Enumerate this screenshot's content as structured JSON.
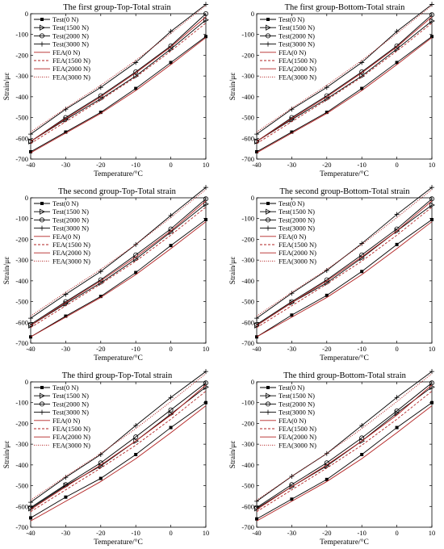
{
  "figure": {
    "legend_entries": [
      {
        "label": "Test(0 N)",
        "style": "test",
        "marker": "filled-square"
      },
      {
        "label": "Test(1500 N)",
        "style": "test",
        "marker": "triangle-right"
      },
      {
        "label": "Test(2000 N)",
        "style": "test",
        "marker": "circle"
      },
      {
        "label": "Test(3000 N)",
        "style": "test",
        "marker": "plus"
      },
      {
        "label": "FEA(0 N)",
        "style": "fea-solid"
      },
      {
        "label": "FEA(1500 N)",
        "style": "fea-dashed"
      },
      {
        "label": "FEA(2000 N)",
        "style": "fea-solid"
      },
      {
        "label": "FEA(3000 N)",
        "style": "fea-dotted"
      }
    ],
    "colors": {
      "test": "#000000",
      "fea": "#b22222"
    }
  },
  "chart_data": [
    {
      "type": "line",
      "title": "The first group-Top-Total strain",
      "xlabel": "Temperature/°C",
      "ylabel": "Strain/με",
      "xlim": [
        -40,
        10
      ],
      "ylim": [
        -700,
        0
      ],
      "xticks": [
        -40,
        -30,
        -20,
        -10,
        0,
        10
      ],
      "yticks": [
        -700,
        -600,
        -500,
        -400,
        -300,
        -200,
        -100,
        0
      ],
      "legend_position": "top-left",
      "x": [
        -40,
        -30,
        -20,
        -10,
        0,
        10
      ],
      "series": [
        {
          "name": "Test(0 N)",
          "values": [
            -665,
            -570,
            -475,
            -360,
            -235,
            -110
          ]
        },
        {
          "name": "Test(1500 N)",
          "values": [
            -615,
            -510,
            -410,
            -300,
            -170,
            -30
          ]
        },
        {
          "name": "Test(2000 N)",
          "values": [
            -615,
            -500,
            -395,
            -280,
            -155,
            0
          ]
        },
        {
          "name": "Test(3000 N)",
          "values": [
            -580,
            -460,
            -355,
            -235,
            -85,
            45
          ]
        },
        {
          "name": "FEA(0 N)",
          "values": [
            -670,
            -575,
            -480,
            -370,
            -245,
            -115
          ]
        },
        {
          "name": "FEA(1500 N)",
          "values": [
            -625,
            -520,
            -415,
            -305,
            -180,
            -45
          ]
        },
        {
          "name": "FEA(2000 N)",
          "values": [
            -615,
            -505,
            -400,
            -285,
            -160,
            -15
          ]
        },
        {
          "name": "FEA(3000 N)",
          "values": [
            -570,
            -455,
            -345,
            -225,
            -95,
            40
          ]
        }
      ]
    },
    {
      "type": "line",
      "title": "The first group-Bottom-Total strain",
      "xlabel": "Temperature/°C",
      "ylabel": "Strain/με",
      "xlim": [
        -40,
        10
      ],
      "ylim": [
        -700,
        0
      ],
      "xticks": [
        -40,
        -30,
        -20,
        -10,
        0,
        10
      ],
      "yticks": [
        -700,
        -600,
        -500,
        -400,
        -300,
        -200,
        -100,
        0
      ],
      "legend_position": "top-left",
      "x": [
        -40,
        -30,
        -20,
        -10,
        0,
        10
      ],
      "series": [
        {
          "name": "Test(0 N)",
          "values": [
            -665,
            -570,
            -475,
            -360,
            -235,
            -110
          ]
        },
        {
          "name": "Test(1500 N)",
          "values": [
            -615,
            -510,
            -410,
            -300,
            -170,
            -35
          ]
        },
        {
          "name": "Test(2000 N)",
          "values": [
            -615,
            -500,
            -395,
            -280,
            -155,
            -5
          ]
        },
        {
          "name": "Test(3000 N)",
          "values": [
            -580,
            -460,
            -355,
            -235,
            -85,
            45
          ]
        },
        {
          "name": "FEA(0 N)",
          "values": [
            -670,
            -575,
            -480,
            -370,
            -245,
            -115
          ]
        },
        {
          "name": "FEA(1500 N)",
          "values": [
            -625,
            -520,
            -415,
            -305,
            -180,
            -45
          ]
        },
        {
          "name": "FEA(2000 N)",
          "values": [
            -615,
            -505,
            -400,
            -285,
            -160,
            -15
          ]
        },
        {
          "name": "FEA(3000 N)",
          "values": [
            -570,
            -455,
            -345,
            -225,
            -95,
            40
          ]
        }
      ]
    },
    {
      "type": "line",
      "title": "The second group-Top-Total strain",
      "xlabel": "Temperature/°C",
      "ylabel": "Strain/με",
      "xlim": [
        -40,
        10
      ],
      "ylim": [
        -700,
        0
      ],
      "xticks": [
        -40,
        -30,
        -20,
        -10,
        0,
        10
      ],
      "yticks": [
        -700,
        -600,
        -500,
        -400,
        -300,
        -200,
        -100,
        0
      ],
      "legend_position": "top-left",
      "x": [
        -40,
        -30,
        -20,
        -10,
        0,
        10
      ],
      "series": [
        {
          "name": "Test(0 N)",
          "values": [
            -670,
            -570,
            -475,
            -360,
            -230,
            -105
          ]
        },
        {
          "name": "Test(1500 N)",
          "values": [
            -615,
            -510,
            -410,
            -295,
            -165,
            -30
          ]
        },
        {
          "name": "Test(2000 N)",
          "values": [
            -610,
            -500,
            -395,
            -275,
            -150,
            -5
          ]
        },
        {
          "name": "Test(3000 N)",
          "values": [
            -580,
            -465,
            -355,
            -225,
            -85,
            50
          ]
        },
        {
          "name": "FEA(0 N)",
          "values": [
            -670,
            -575,
            -480,
            -370,
            -245,
            -115
          ]
        },
        {
          "name": "FEA(1500 N)",
          "values": [
            -625,
            -520,
            -415,
            -305,
            -180,
            -45
          ]
        },
        {
          "name": "FEA(2000 N)",
          "values": [
            -615,
            -505,
            -400,
            -285,
            -160,
            -15
          ]
        },
        {
          "name": "FEA(3000 N)",
          "values": [
            -570,
            -455,
            -345,
            -225,
            -95,
            40
          ]
        }
      ]
    },
    {
      "type": "line",
      "title": "The second group-Bottom-Total strain",
      "xlabel": "Temperature/°C",
      "ylabel": "Strain/με",
      "xlim": [
        -40,
        10
      ],
      "ylim": [
        -700,
        0
      ],
      "xticks": [
        -40,
        -30,
        -20,
        -10,
        0,
        10
      ],
      "yticks": [
        -700,
        -600,
        -500,
        -400,
        -300,
        -200,
        -100,
        0
      ],
      "legend_position": "top-left",
      "x": [
        -40,
        -30,
        -20,
        -10,
        0,
        10
      ],
      "series": [
        {
          "name": "Test(0 N)",
          "values": [
            -670,
            -565,
            -470,
            -355,
            -225,
            -105
          ]
        },
        {
          "name": "Test(1500 N)",
          "values": [
            -615,
            -505,
            -410,
            -290,
            -160,
            -35
          ]
        },
        {
          "name": "Test(2000 N)",
          "values": [
            -610,
            -500,
            -395,
            -275,
            -150,
            -5
          ]
        },
        {
          "name": "Test(3000 N)",
          "values": [
            -580,
            -460,
            -350,
            -220,
            -80,
            50
          ]
        },
        {
          "name": "FEA(0 N)",
          "values": [
            -670,
            -575,
            -480,
            -370,
            -245,
            -115
          ]
        },
        {
          "name": "FEA(1500 N)",
          "values": [
            -625,
            -520,
            -415,
            -305,
            -180,
            -45
          ]
        },
        {
          "name": "FEA(2000 N)",
          "values": [
            -615,
            -505,
            -400,
            -285,
            -160,
            -15
          ]
        },
        {
          "name": "FEA(3000 N)",
          "values": [
            -570,
            -455,
            -345,
            -225,
            -95,
            40
          ]
        }
      ]
    },
    {
      "type": "line",
      "title": "The third group-Top-Total strain",
      "xlabel": "Temperature/°C",
      "ylabel": "Strain/με",
      "xlim": [
        -40,
        10
      ],
      "ylim": [
        -700,
        0
      ],
      "xticks": [
        -40,
        -30,
        -20,
        -10,
        0,
        10
      ],
      "yticks": [
        -700,
        -600,
        -500,
        -400,
        -300,
        -200,
        -100,
        0
      ],
      "legend_position": "top-left",
      "x": [
        -40,
        -30,
        -20,
        -10,
        0,
        10
      ],
      "series": [
        {
          "name": "Test(0 N)",
          "values": [
            -655,
            -555,
            -465,
            -350,
            -220,
            -100
          ]
        },
        {
          "name": "Test(1500 N)",
          "values": [
            -610,
            -500,
            -405,
            -285,
            -155,
            -25
          ]
        },
        {
          "name": "Test(2000 N)",
          "values": [
            -605,
            -495,
            -390,
            -265,
            -135,
            -5
          ]
        },
        {
          "name": "Test(3000 N)",
          "values": [
            -580,
            -460,
            -350,
            -210,
            -75,
            50
          ]
        },
        {
          "name": "FEA(0 N)",
          "values": [
            -670,
            -575,
            -480,
            -370,
            -245,
            -115
          ]
        },
        {
          "name": "FEA(1500 N)",
          "values": [
            -625,
            -520,
            -415,
            -305,
            -180,
            -45
          ]
        },
        {
          "name": "FEA(2000 N)",
          "values": [
            -615,
            -505,
            -400,
            -285,
            -160,
            -15
          ]
        },
        {
          "name": "FEA(3000 N)",
          "values": [
            -570,
            -455,
            -345,
            -225,
            -95,
            40
          ]
        }
      ]
    },
    {
      "type": "line",
      "title": "The third group-Bottom-Total strain",
      "xlabel": "Temperature/°C",
      "ylabel": "Strain/με",
      "xlim": [
        -40,
        10
      ],
      "ylim": [
        -700,
        0
      ],
      "xticks": [
        -40,
        -30,
        -20,
        -10,
        0,
        10
      ],
      "yticks": [
        -700,
        -600,
        -500,
        -400,
        -300,
        -200,
        -100,
        0
      ],
      "legend_position": "top-left",
      "x": [
        -40,
        -30,
        -20,
        -10,
        0,
        10
      ],
      "series": [
        {
          "name": "Test(0 N)",
          "values": [
            -660,
            -565,
            -470,
            -350,
            -220,
            -100
          ]
        },
        {
          "name": "Test(1500 N)",
          "values": [
            -610,
            -505,
            -405,
            -285,
            -150,
            -25
          ]
        },
        {
          "name": "Test(2000 N)",
          "values": [
            -605,
            -495,
            -390,
            -270,
            -140,
            -5
          ]
        },
        {
          "name": "Test(3000 N)",
          "values": [
            -575,
            -455,
            -345,
            -210,
            -75,
            50
          ]
        },
        {
          "name": "FEA(0 N)",
          "values": [
            -670,
            -575,
            -480,
            -370,
            -245,
            -115
          ]
        },
        {
          "name": "FEA(1500 N)",
          "values": [
            -625,
            -520,
            -415,
            -305,
            -180,
            -45
          ]
        },
        {
          "name": "FEA(2000 N)",
          "values": [
            -615,
            -505,
            -400,
            -285,
            -160,
            -15
          ]
        },
        {
          "name": "FEA(3000 N)",
          "values": [
            -570,
            -455,
            -345,
            -225,
            -95,
            40
          ]
        }
      ]
    }
  ]
}
